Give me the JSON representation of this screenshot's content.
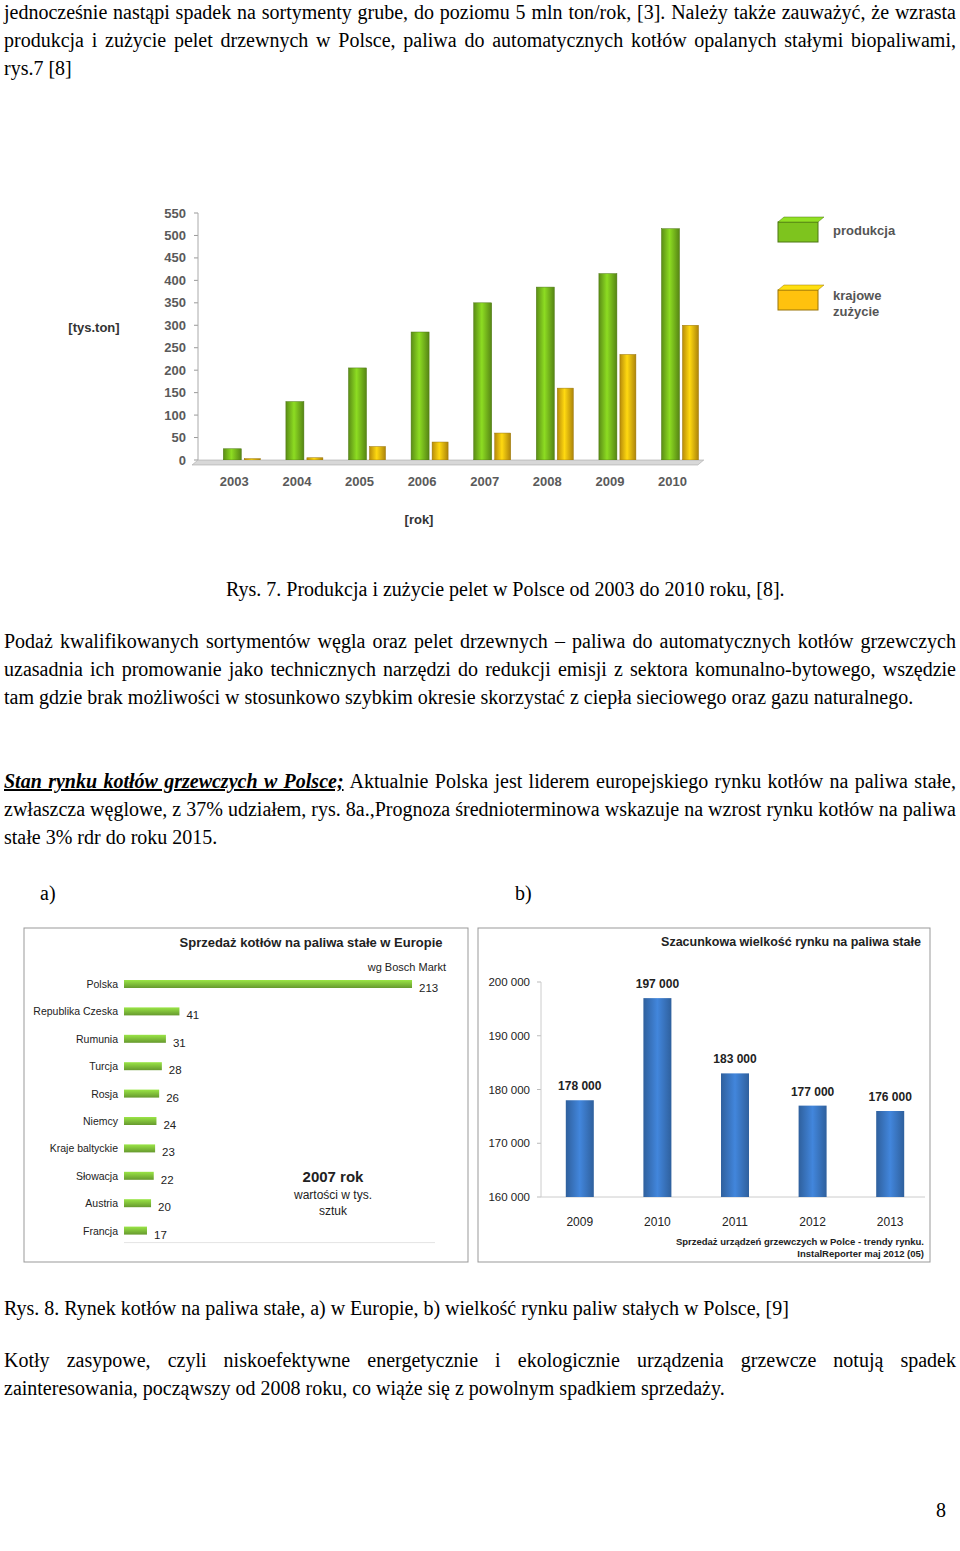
{
  "document": {
    "intro": "jednocześnie nastąpi spadek na sortymenty grube, do poziomu 5 mln ton/rok, [3]. Należy także zauważyć, że wzrasta produkcja i zużycie pelet drzewnych w Polsce, paliwa do automatycznych kotłów opalanych stałymi biopaliwami, rys.7 [8]",
    "caption_fig7": "Rys. 7. Produkcja i zużycie pelet w Polsce od 2003 do 2010 roku, [8].",
    "paragraph_1": "Podaż kwalifikowanych sortymentów węgla oraz pelet drzewnych – paliwa do automatycznych kotłów grzewczych uzasadnia ich promowanie jako technicznych narzędzi do redukcji emisji z sektora komunalno-bytowego, wszędzie tam gdzie brak możliwości w stosunkowo szybkim okresie skorzystać z ciepła sieciowego oraz gazu naturalnego.",
    "heading": "Stan rynku kotłów grzewczych w Polsce;",
    "paragraph_2": "Aktualnie Polska jest liderem europejskiego rynku kotłów na paliwa stałe, zwłaszcza węglowe, z 37% udziałem, rys. 8a.,Prognoza średnioterminowa wskazuje na wzrost rynku kotłów na paliwa stałe 3% rdr do roku 2015.",
    "panel_a": "a)",
    "panel_b": "b)",
    "caption_fig8": "Rys. 8. Rynek kotłów na paliwa stałe, a) w Europie, b) wielkość rynku paliw stałych w Polsce, [9]",
    "paragraph_3": "Kotły zasypowe, czyli niskoefektywne energetycznie i ekologicznie urządzenia grzewcze notują spadek zainteresowania, począwszy od 2008 roku, co wiąże się z powolnym spadkiem sprzedaży.",
    "page_number": 8
  },
  "chart_data": [
    {
      "type": "bar",
      "y_label": "[tys.ton]",
      "x_label": "[rok]",
      "categories": [
        "2003",
        "2004",
        "2005",
        "2006",
        "2007",
        "2008",
        "2009",
        "2010"
      ],
      "series": [
        {
          "name": "produkcja",
          "color": "#7ec41e",
          "values": [
            25,
            130,
            205,
            285,
            350,
            385,
            415,
            515
          ]
        },
        {
          "name": "krajowe zużycie",
          "color": "#ffc20e",
          "values": [
            3,
            5,
            30,
            40,
            60,
            160,
            235,
            300
          ]
        }
      ],
      "ylim": [
        0,
        550
      ],
      "yticks": [
        0,
        50,
        100,
        150,
        200,
        250,
        300,
        350,
        400,
        450,
        500,
        550
      ],
      "grid": false,
      "legend": "right"
    },
    {
      "type": "bar",
      "orientation": "horizontal",
      "title": "Sprzedaż kotłów na paliwa stałe w Europie",
      "subtitle": "wg Bosch Markt",
      "annotations": [
        "2007 rok",
        "wartości w tys. sztuk"
      ],
      "categories": [
        "Polska",
        "Republika Czeska",
        "Rumunia",
        "Turcja",
        "Rosja",
        "Niemcy",
        "Kraje baltyckie",
        "Słowacja",
        "Austria",
        "Francja"
      ],
      "values": [
        213,
        41,
        31,
        28,
        26,
        24,
        23,
        22,
        20,
        17
      ],
      "color": "#80bf3a",
      "xlim": [
        0,
        230
      ],
      "tick_labels": false,
      "data_labels": true
    },
    {
      "type": "bar",
      "title": "Szacunkowa wielkość rynku na paliwa stałe",
      "source": [
        "Sprzedaż urządzeń grzewczych w Polce - trendy rynku.",
        "InstalReporter maj 2012 (05)"
      ],
      "categories": [
        "2009",
        "2010",
        "2011",
        "2012",
        "2013"
      ],
      "values": [
        178000,
        197000,
        183000,
        177000,
        176000
      ],
      "value_labels": [
        "178 000",
        "197 000",
        "183 000",
        "177 000",
        "176 000"
      ],
      "color": "#3b78c4",
      "ylim": [
        160000,
        200000
      ],
      "yticks": [
        {
          "value": 160000,
          "label": "160 000"
        },
        {
          "value": 170000,
          "label": "170 000"
        },
        {
          "value": 180000,
          "label": "180 000"
        },
        {
          "value": 190000,
          "label": "190 000"
        },
        {
          "value": 200000,
          "label": "200 000"
        }
      ],
      "grid": false,
      "data_labels": true
    }
  ]
}
